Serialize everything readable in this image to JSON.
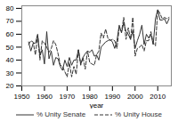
{
  "chart_data": {
    "type": "line",
    "xlabel": "year",
    "x": [
      1953,
      1954,
      1955,
      1956,
      1957,
      1958,
      1959,
      1960,
      1961,
      1962,
      1963,
      1964,
      1965,
      1966,
      1967,
      1968,
      1969,
      1970,
      1971,
      1972,
      1973,
      1974,
      1975,
      1976,
      1977,
      1978,
      1979,
      1980,
      1981,
      1982,
      1983,
      1984,
      1985,
      1986,
      1987,
      1988,
      1989,
      1990,
      1991,
      1992,
      1993,
      1994,
      1995,
      1996,
      1997,
      1998,
      1999,
      2000,
      2001,
      2002,
      2003,
      2004,
      2005,
      2006,
      2007,
      2008,
      2009,
      2010,
      2011,
      2012,
      2013,
      2014,
      2015
    ],
    "series": [
      {
        "name": "% Unity Senate",
        "color": "#333333",
        "line_style": "solid",
        "values": [
          54,
          47,
          53,
          53,
          60,
          44,
          48,
          37,
          62,
          41,
          47,
          36,
          42,
          41,
          35,
          32,
          40,
          35,
          42,
          36,
          40,
          40,
          48,
          37,
          42,
          45,
          47,
          46,
          48,
          43,
          44,
          40,
          50,
          52,
          54,
          55,
          56,
          54,
          49,
          55,
          67,
          61,
          69,
          62,
          60,
          56,
          63,
          49,
          55,
          60,
          67,
          52,
          60,
          57,
          60,
          52,
          72,
          79,
          71,
          71,
          72,
          68,
          72
        ]
      },
      {
        "name": "% Unity House",
        "color": "#333333",
        "line_style": "dashed",
        "values": [
          52,
          55,
          54,
          44,
          59,
          40,
          55,
          53,
          50,
          46,
          49,
          55,
          52,
          45,
          36,
          35,
          31,
          27,
          38,
          27,
          35,
          29,
          48,
          36,
          42,
          33,
          47,
          38,
          37,
          36,
          44,
          47,
          61,
          57,
          64,
          57,
          55,
          56,
          55,
          49,
          65,
          62,
          73,
          56,
          65,
          56,
          73,
          43,
          49,
          50,
          52,
          47,
          55,
          55,
          62,
          53,
          51,
          79,
          76,
          72,
          73,
          72,
          73
        ]
      }
    ],
    "xlim": [
      1950,
      2016
    ],
    "ylim": [
      20,
      82
    ],
    "xticks": [
      1950,
      1960,
      1970,
      1980,
      1990,
      2000,
      2010
    ],
    "yticks": [
      20,
      30,
      40,
      50,
      60,
      70,
      80
    ],
    "grid": false,
    "legend": "bottom"
  }
}
